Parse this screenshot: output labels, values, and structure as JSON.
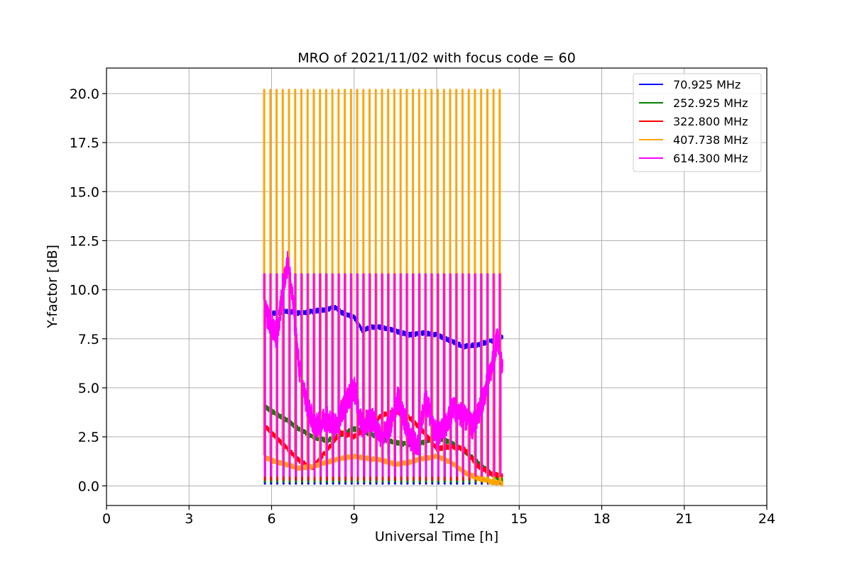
{
  "chart_data": {
    "type": "line",
    "title": "MRO of 2021/11/02 with focus code = 60",
    "xlabel": "Universal Time [h]",
    "ylabel": "Y-factor [dB]",
    "xlim": [
      0,
      24
    ],
    "ylim": [
      -1.0,
      21.3
    ],
    "xticks": [
      0,
      3,
      6,
      9,
      12,
      15,
      18,
      21,
      24
    ],
    "xtick_labels": [
      "0",
      "3",
      "6",
      "9",
      "12",
      "15",
      "18",
      "21",
      "24"
    ],
    "yticks": [
      0,
      2.5,
      5,
      7.5,
      10,
      12.5,
      15,
      17.5,
      20
    ],
    "ytick_labels": [
      "0.0",
      "2.5",
      "5.0",
      "7.5",
      "10.0",
      "12.5",
      "15.0",
      "17.5",
      "20.0"
    ],
    "grid": true,
    "legend_position": "top-right",
    "calibration": {
      "start": 5.72,
      "end": 14.28,
      "count": 39,
      "width": 0.05
    },
    "series": [
      {
        "name": " 70.925 MHz",
        "color": "#0000ff",
        "cal_high": 1.6,
        "cal_low": 0.1,
        "noise": 0.25,
        "x": [
          5.72,
          6.0,
          6.5,
          7.0,
          7.5,
          8.0,
          8.3,
          8.6,
          9.0,
          9.3,
          9.6,
          10.0,
          10.5,
          11.0,
          11.5,
          12.0,
          12.5,
          13.0,
          13.5,
          14.0,
          14.4
        ],
        "y": [
          8.9,
          8.8,
          8.9,
          8.8,
          8.9,
          9.0,
          9.1,
          8.8,
          8.6,
          7.9,
          8.1,
          8.1,
          7.9,
          7.7,
          7.8,
          7.7,
          7.4,
          7.1,
          7.2,
          7.4,
          7.6
        ]
      },
      {
        "name": " 252.925 MHz",
        "color": "#008000",
        "cal_high": 4.0,
        "cal_low": 0.2,
        "noise": 0.25,
        "x": [
          5.72,
          6.0,
          6.5,
          7.0,
          7.5,
          8.0,
          8.5,
          9.0,
          9.5,
          10.0,
          10.5,
          11.0,
          11.5,
          12.0,
          12.5,
          13.0,
          13.5,
          14.0,
          14.4
        ],
        "y": [
          4.1,
          3.8,
          3.4,
          2.9,
          2.5,
          2.3,
          2.6,
          2.9,
          2.7,
          2.4,
          2.2,
          2.1,
          2.2,
          2.5,
          2.2,
          1.8,
          1.2,
          0.6,
          0.3
        ]
      },
      {
        "name": " 322.800 MHz",
        "color": "#ff0000",
        "cal_high": 3.3,
        "cal_low": 0.3,
        "noise": 0.25,
        "x": [
          5.72,
          6.0,
          6.5,
          7.0,
          7.5,
          8.0,
          8.5,
          9.0,
          9.5,
          10.0,
          10.5,
          11.0,
          11.5,
          12.0,
          12.5,
          13.0,
          13.5,
          14.0,
          14.4
        ],
        "y": [
          3.1,
          2.7,
          2.0,
          1.3,
          0.9,
          1.8,
          2.7,
          2.5,
          3.0,
          3.6,
          3.8,
          3.5,
          2.8,
          1.9,
          2.0,
          1.9,
          1.0,
          0.6,
          0.5
        ]
      },
      {
        "name": " 407.738 MHz",
        "color": "#ffa500",
        "cal_high": 20.2,
        "cal_low": 10.8,
        "noise": 0.25,
        "x": [
          5.72,
          6.0,
          6.5,
          7.0,
          7.5,
          8.0,
          8.5,
          9.0,
          9.5,
          10.0,
          10.5,
          11.0,
          11.5,
          12.0,
          12.5,
          13.0,
          13.5,
          14.0,
          14.4
        ],
        "y": [
          1.5,
          1.3,
          1.1,
          0.9,
          1.0,
          1.2,
          1.4,
          1.5,
          1.4,
          1.3,
          1.1,
          1.2,
          1.4,
          1.5,
          1.2,
          0.7,
          0.4,
          0.2,
          0.1
        ]
      },
      {
        "name": " 614.300 MHz",
        "color": "#ff00ff",
        "cal_high": 10.8,
        "cal_low": 0.5,
        "noise": 1.3,
        "x": [
          5.72,
          5.9,
          6.2,
          6.4,
          6.6,
          6.8,
          7.0,
          7.3,
          7.6,
          8.0,
          8.3,
          8.6,
          9.0,
          9.3,
          9.6,
          10.0,
          10.3,
          10.6,
          11.0,
          11.3,
          11.6,
          12.0,
          12.3,
          12.6,
          13.0,
          13.3,
          13.6,
          14.0,
          14.2,
          14.4
        ],
        "y": [
          9.0,
          8.5,
          7.5,
          10.0,
          11.5,
          9.0,
          6.0,
          4.0,
          3.0,
          3.5,
          3.0,
          4.0,
          5.0,
          3.0,
          3.5,
          2.5,
          3.0,
          4.5,
          2.5,
          2.0,
          4.5,
          2.5,
          3.0,
          4.0,
          3.5,
          3.0,
          4.0,
          6.0,
          7.5,
          6.0
        ]
      }
    ]
  }
}
